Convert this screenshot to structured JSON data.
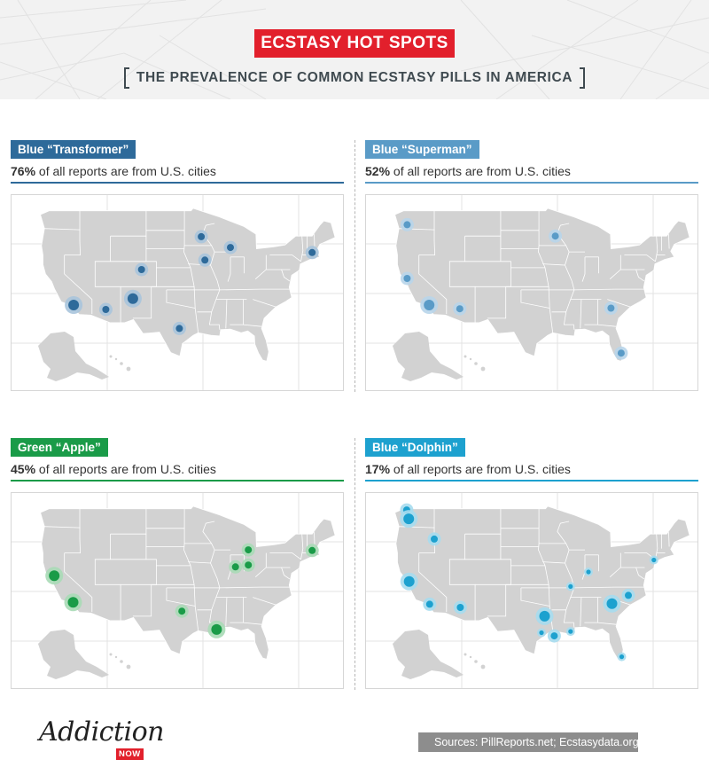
{
  "header": {
    "title": "ECSTASY HOT SPOTS",
    "subtitle": "THE PREVALENCE OF COMMON ECSTASY PILLS IN AMERICA"
  },
  "colors": {
    "title_bg": "#e2202c",
    "map_land": "#d2d2d2",
    "map_borders": "#ffffff"
  },
  "panels": [
    {
      "label": "Blue “Transformer”",
      "percent": "76%",
      "stat_text": " of all reports are from U.S. cities",
      "color": "#2e6a9a",
      "halo": "#a9c4dc",
      "hotspots": [
        {
          "lon": -118.2,
          "lat": 34.1,
          "level": 3
        },
        {
          "lon": -111.9,
          "lat": 33.4,
          "level": 2
        },
        {
          "lon": -106.6,
          "lat": 35.1,
          "level": 3
        },
        {
          "lon": -104.9,
          "lat": 39.7,
          "level": 2
        },
        {
          "lon": -97.5,
          "lat": 30.4,
          "level": 2
        },
        {
          "lon": -93.2,
          "lat": 44.9,
          "level": 2
        },
        {
          "lon": -92.5,
          "lat": 41.2,
          "level": 2
        },
        {
          "lon": -87.5,
          "lat": 43.2,
          "level": 2
        },
        {
          "lon": -71.5,
          "lat": 42.4,
          "level": 2
        }
      ]
    },
    {
      "label": "Blue “Superman”",
      "percent": "52%",
      "stat_text": " of all reports are from U.S. cities",
      "color": "#5a9bc7",
      "halo": "#b8d5ea",
      "hotspots": [
        {
          "lon": -122.3,
          "lat": 46.8,
          "level": 2
        },
        {
          "lon": -122.3,
          "lat": 38.3,
          "level": 2
        },
        {
          "lon": -118.0,
          "lat": 34.1,
          "level": 3
        },
        {
          "lon": -112.0,
          "lat": 33.5,
          "level": 2
        },
        {
          "lon": -93.3,
          "lat": 45.0,
          "level": 2
        },
        {
          "lon": -82.4,
          "lat": 33.6,
          "level": 2
        },
        {
          "lon": -80.4,
          "lat": 26.5,
          "level": 2
        }
      ]
    },
    {
      "label": "Green “Apple”",
      "percent": "45%",
      "stat_text": " of all reports are from U.S. cities",
      "color": "#1a9b48",
      "halo": "#a8dab6",
      "hotspots": [
        {
          "lon": -122.0,
          "lat": 38.4,
          "level": 3
        },
        {
          "lon": -118.3,
          "lat": 34.2,
          "level": 3
        },
        {
          "lon": -97.0,
          "lat": 32.8,
          "level": 2
        },
        {
          "lon": -90.2,
          "lat": 29.9,
          "level": 3
        },
        {
          "lon": -86.5,
          "lat": 39.8,
          "level": 2
        },
        {
          "lon": -84.0,
          "lat": 42.5,
          "level": 2
        },
        {
          "lon": -84.0,
          "lat": 40.1,
          "level": 2
        },
        {
          "lon": -71.5,
          "lat": 42.4,
          "level": 2
        }
      ]
    },
    {
      "label": "Blue “Dolphin”",
      "percent": "17%",
      "stat_text": " of all reports are from U.S. cities",
      "color": "#1da1cf",
      "halo": "#a6dbee",
      "hotspots": [
        {
          "lon": -122.4,
          "lat": 48.8,
          "level": 2
        },
        {
          "lon": -122.0,
          "lat": 47.4,
          "level": 3
        },
        {
          "lon": -117.0,
          "lat": 44.2,
          "level": 2
        },
        {
          "lon": -121.9,
          "lat": 37.5,
          "level": 3
        },
        {
          "lon": -117.9,
          "lat": 33.9,
          "level": 2
        },
        {
          "lon": -111.9,
          "lat": 33.4,
          "level": 2
        },
        {
          "lon": -95.4,
          "lat": 32.0,
          "level": 3
        },
        {
          "lon": -96.0,
          "lat": 29.4,
          "level": 1
        },
        {
          "lon": -93.5,
          "lat": 28.9,
          "level": 2
        },
        {
          "lon": -90.3,
          "lat": 36.7,
          "level": 1
        },
        {
          "lon": -90.3,
          "lat": 29.6,
          "level": 1
        },
        {
          "lon": -86.8,
          "lat": 39.0,
          "level": 1
        },
        {
          "lon": -82.2,
          "lat": 34.0,
          "level": 3
        },
        {
          "lon": -79.0,
          "lat": 35.3,
          "level": 2
        },
        {
          "lon": -74.0,
          "lat": 40.9,
          "level": 1
        },
        {
          "lon": -80.3,
          "lat": 25.6,
          "level": 1
        }
      ]
    }
  ],
  "footer": {
    "logo_text": "Addiction",
    "logo_badge": "NOW",
    "sources": "Sources: PillReports.net; Ecstasydata.org"
  }
}
